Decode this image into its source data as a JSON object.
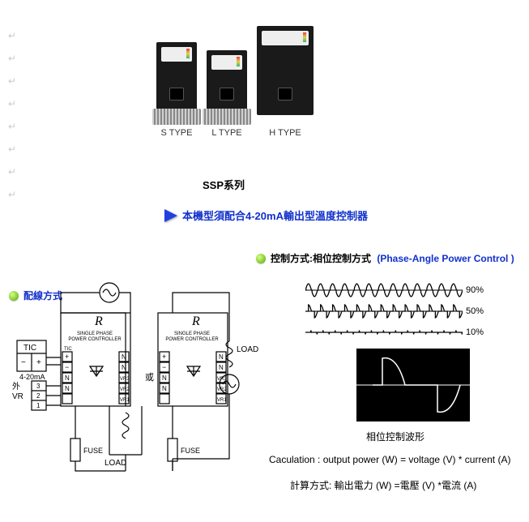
{
  "marks": [
    "↵",
    "↵",
    "↵",
    "↵",
    "↵",
    "↵",
    "↵",
    "↵"
  ],
  "products": {
    "types": [
      {
        "label": "S TYPE"
      },
      {
        "label": "L TYPE"
      },
      {
        "label": "H TYPE"
      }
    ]
  },
  "series_title": "SSP系列",
  "requirement": {
    "text_zh": "本機型須配合4-20mA輸出型溫度控制器",
    "color": "#1030cc"
  },
  "control_method": {
    "label_zh": "控制方式:相位控制方式",
    "label_en": "(Phase-Angle Power Control )",
    "label_en_color": "#1030cc"
  },
  "wiring": {
    "title": "配線方式",
    "title_color": "#1030cc",
    "tic": {
      "label": "TIC",
      "polarity": [
        "−",
        "+"
      ],
      "signal": "4-20mA"
    },
    "vr": {
      "label": "外\nVR",
      "pins": [
        "3",
        "2",
        "1"
      ]
    },
    "controller": {
      "script": "R",
      "line1": "SINGLE PHASE",
      "line2": "POWER CONTROLLER",
      "left_terms": [
        "TIC",
        "+",
        "−",
        "N",
        "N"
      ],
      "right_terms": [
        "N",
        "N",
        "VR3",
        "VR2",
        "VR1"
      ]
    },
    "or_label": "或",
    "load_label": "LOAD",
    "fuse_label": "FUSE"
  },
  "waveforms": {
    "rows": [
      {
        "percent": "90%",
        "duty": 0.9
      },
      {
        "percent": "50%",
        "duty": 0.5
      },
      {
        "percent": "10%",
        "duty": 0.1
      }
    ],
    "stroke": "#000000",
    "caption": "相位控制波形"
  },
  "oscilloscope": {
    "bg": "#000000",
    "trace": "#ffffff"
  },
  "calculation": {
    "en": "Caculation : output power (W) = voltage (V) * current (A)",
    "zh": "計算方式: 輸出電力 (W) =電壓 (V) *電流 (A)"
  }
}
